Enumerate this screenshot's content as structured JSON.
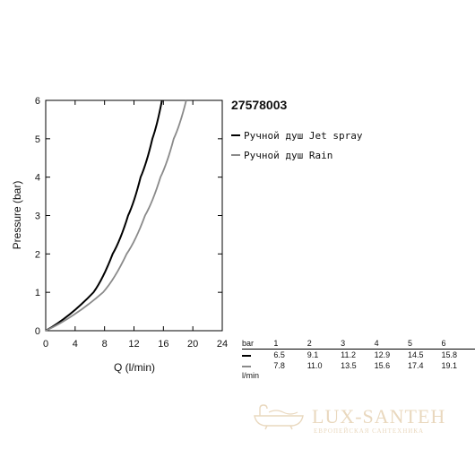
{
  "product_code": "27578003",
  "legend": [
    {
      "label": "Ручной душ Jet spray",
      "color": "#000000"
    },
    {
      "label": "Ручной душ Rain",
      "color": "#8a8a8a"
    }
  ],
  "table": {
    "header_label": "bar",
    "unit_label": "l/min",
    "columns": [
      "1",
      "2",
      "3",
      "4",
      "5",
      "6"
    ],
    "rows": [
      {
        "values": [
          "6.5",
          "9.1",
          "11.2",
          "12.9",
          "14.5",
          "15.8"
        ],
        "color": "#000000"
      },
      {
        "values": [
          "7.8",
          "11.0",
          "13.5",
          "15.6",
          "17.4",
          "19.1"
        ],
        "color": "#8a8a8a"
      }
    ]
  },
  "chart_data": {
    "type": "line",
    "xlabel": "Q (l/min)",
    "ylabel": "Pressure (bar)",
    "xlim": [
      0,
      24
    ],
    "ylim": [
      0,
      6
    ],
    "xticks": [
      "0",
      "4",
      "8",
      "12",
      "16",
      "20",
      "24"
    ],
    "yticks": [
      "0",
      "1",
      "2",
      "3",
      "4",
      "5",
      "6"
    ],
    "grid": false,
    "series": [
      {
        "name": "Ручной душ Jet spray",
        "color": "#000000",
        "x": [
          0,
          6.5,
          9.1,
          11.2,
          12.9,
          14.5,
          15.8
        ],
        "y": [
          0,
          1,
          2,
          3,
          4,
          5,
          6
        ]
      },
      {
        "name": "Ручной душ Rain",
        "color": "#8a8a8a",
        "x": [
          0,
          7.8,
          11.0,
          13.5,
          15.6,
          17.4,
          19.1
        ],
        "y": [
          0,
          1,
          2,
          3,
          4,
          5,
          6
        ]
      }
    ]
  },
  "watermark": {
    "name": "LUX-SANTEH",
    "tagline": "ЕВРОПЕЙСКАЯ САНТЕХНИКА",
    "color": "#d8b98a"
  }
}
